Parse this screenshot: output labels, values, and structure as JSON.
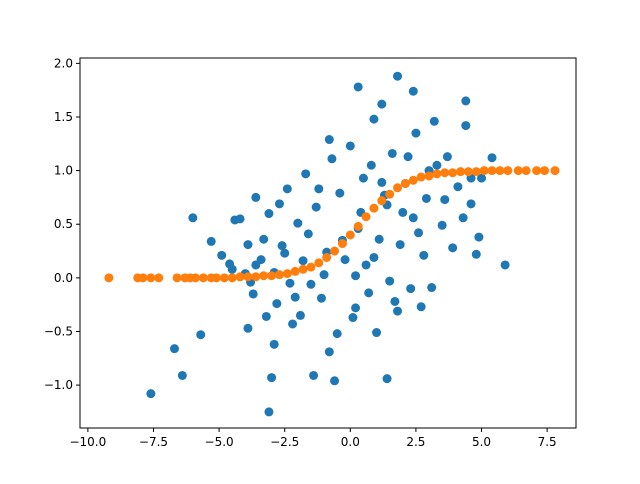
{
  "chart_data": {
    "type": "scatter",
    "title": "",
    "xlabel": "",
    "ylabel": "",
    "xlim": [
      -10.3,
      8.6
    ],
    "ylim": [
      -1.4,
      2.05
    ],
    "x_ticks": [
      -10.0,
      -7.5,
      -5.0,
      -2.5,
      0.0,
      2.5,
      5.0,
      7.5
    ],
    "x_tick_labels": [
      "−10.0",
      "−7.5",
      "−5.0",
      "−2.5",
      "0.0",
      "2.5",
      "5.0",
      "7.5"
    ],
    "y_ticks": [
      -1.0,
      -0.5,
      0.0,
      0.5,
      1.0,
      1.5,
      2.0
    ],
    "y_tick_labels": [
      "−1.0",
      "−0.5",
      "0.0",
      "0.5",
      "1.0",
      "1.5",
      "2.0"
    ],
    "grid": false,
    "legend": "none",
    "series": [
      {
        "color": "#1f77b4",
        "points": [
          [
            -7.6,
            -1.08
          ],
          [
            -6.4,
            -0.91
          ],
          [
            -6.7,
            -0.66
          ],
          [
            -5.7,
            -0.53
          ],
          [
            -3.1,
            -1.25
          ],
          [
            -3.0,
            -0.93
          ],
          [
            -0.6,
            -0.96
          ],
          [
            -1.4,
            -0.91
          ],
          [
            1.4,
            -0.94
          ],
          [
            -6.0,
            0.56
          ],
          [
            -5.3,
            0.34
          ],
          [
            -4.9,
            0.21
          ],
          [
            -4.6,
            0.13
          ],
          [
            -4.4,
            0.54
          ],
          [
            -4.2,
            0.55
          ],
          [
            -4.0,
            0.04
          ],
          [
            -3.9,
            -0.47
          ],
          [
            -3.7,
            -0.15
          ],
          [
            -3.6,
            0.12
          ],
          [
            -3.4,
            0.17
          ],
          [
            -3.3,
            0.36
          ],
          [
            -3.1,
            0.6
          ],
          [
            -2.9,
            -0.62
          ],
          [
            -2.8,
            -0.24
          ],
          [
            -2.6,
            0.3
          ],
          [
            -2.4,
            0.83
          ],
          [
            -2.2,
            -0.43
          ],
          [
            -2.0,
            0.51
          ],
          [
            -1.9,
            -0.35
          ],
          [
            -1.7,
            0.97
          ],
          [
            -1.5,
            -0.06
          ],
          [
            -1.3,
            0.66
          ],
          [
            -1.1,
            -0.19
          ],
          [
            -0.9,
            0.24
          ],
          [
            -0.7,
            1.11
          ],
          [
            -0.5,
            -0.52
          ],
          [
            -0.4,
            0.79
          ],
          [
            -0.2,
            0.17
          ],
          [
            0.0,
            1.23
          ],
          [
            0.2,
            -0.28
          ],
          [
            0.3,
            0.46
          ],
          [
            0.5,
            0.93
          ],
          [
            0.7,
            -0.14
          ],
          [
            0.8,
            1.05
          ],
          [
            1.0,
            -0.51
          ],
          [
            1.1,
            0.36
          ],
          [
            1.3,
            0.77
          ],
          [
            1.5,
            -0.03
          ],
          [
            1.6,
            1.16
          ],
          [
            1.8,
            -0.31
          ],
          [
            2.0,
            0.61
          ],
          [
            2.1,
            0.88
          ],
          [
            2.3,
            -0.1
          ],
          [
            2.5,
            1.35
          ],
          [
            2.6,
            0.42
          ],
          [
            2.8,
            0.21
          ],
          [
            2.9,
            0.74
          ],
          [
            3.1,
            -0.09
          ],
          [
            3.3,
            1.05
          ],
          [
            3.5,
            0.49
          ],
          [
            3.7,
            1.13
          ],
          [
            3.9,
            0.28
          ],
          [
            4.1,
            0.85
          ],
          [
            4.3,
            0.56
          ],
          [
            4.4,
            1.42
          ],
          [
            4.6,
            0.69
          ],
          [
            4.8,
            0.22
          ],
          [
            5.0,
            0.93
          ],
          [
            -3.8,
            -0.04
          ],
          [
            -2.1,
            -0.18
          ],
          [
            -1.0,
            0.03
          ],
          [
            0.6,
            0.12
          ],
          [
            1.9,
            0.31
          ],
          [
            -4.5,
            0.08
          ],
          [
            -3.2,
            -0.36
          ],
          [
            -2.7,
            0.69
          ],
          [
            -1.6,
            0.41
          ],
          [
            -0.8,
            -0.69
          ],
          [
            0.1,
            -0.37
          ],
          [
            0.9,
            0.19
          ],
          [
            1.7,
            -0.22
          ],
          [
            2.4,
            0.56
          ],
          [
            3.0,
            1.0
          ],
          [
            3.6,
            0.73
          ],
          [
            -0.3,
            0.35
          ],
          [
            0.4,
            0.61
          ],
          [
            -1.8,
            0.16
          ],
          [
            -2.3,
            -0.05
          ],
          [
            1.2,
            0.89
          ],
          [
            2.7,
            -0.27
          ],
          [
            1.8,
            1.88
          ],
          [
            0.3,
            1.78
          ],
          [
            2.4,
            1.74
          ],
          [
            1.2,
            1.62
          ],
          [
            0.9,
            1.48
          ],
          [
            -0.8,
            1.29
          ],
          [
            4.4,
            1.65
          ],
          [
            3.2,
            1.46
          ],
          [
            5.4,
            1.12
          ],
          [
            5.9,
            0.12
          ],
          [
            4.6,
            0.93
          ],
          [
            4.9,
            0.38
          ],
          [
            -3.9,
            0.31
          ],
          [
            -3.6,
            0.75
          ],
          [
            -2.5,
            0.23
          ],
          [
            -1.2,
            0.83
          ],
          [
            0.2,
            0.02
          ],
          [
            1.4,
            0.68
          ],
          [
            2.2,
            1.13
          ],
          [
            -2.9,
            0.05
          ]
        ]
      },
      {
        "color": "#ff7f0e",
        "points": [
          [
            -9.2,
            0.0
          ],
          [
            -8.1,
            0.0
          ],
          [
            -7.9,
            0.0
          ],
          [
            -7.6,
            0.0
          ],
          [
            -7.3,
            0.0
          ],
          [
            -6.6,
            0.0
          ],
          [
            -6.3,
            0.0
          ],
          [
            -6.1,
            0.0
          ],
          [
            -5.9,
            0.0
          ],
          [
            -5.6,
            0.0
          ],
          [
            -5.3,
            0.0
          ],
          [
            -5.1,
            0.0
          ],
          [
            -4.8,
            0.0
          ],
          [
            -4.5,
            0.0
          ],
          [
            -4.2,
            0.01
          ],
          [
            -3.9,
            0.01
          ],
          [
            -3.6,
            0.01
          ],
          [
            -3.3,
            0.02
          ],
          [
            -3.0,
            0.02
          ],
          [
            -2.7,
            0.03
          ],
          [
            -2.4,
            0.04
          ],
          [
            -2.1,
            0.06
          ],
          [
            -1.8,
            0.08
          ],
          [
            -1.5,
            0.1
          ],
          [
            -1.2,
            0.14
          ],
          [
            -0.9,
            0.19
          ],
          [
            -0.6,
            0.25
          ],
          [
            -0.3,
            0.32
          ],
          [
            0.0,
            0.4
          ],
          [
            0.3,
            0.48
          ],
          [
            0.6,
            0.57
          ],
          [
            0.9,
            0.65
          ],
          [
            1.2,
            0.72
          ],
          [
            1.5,
            0.78
          ],
          [
            1.8,
            0.84
          ],
          [
            2.1,
            0.88
          ],
          [
            2.4,
            0.91
          ],
          [
            2.7,
            0.94
          ],
          [
            3.0,
            0.95
          ],
          [
            3.3,
            0.97
          ],
          [
            3.6,
            0.98
          ],
          [
            3.9,
            0.98
          ],
          [
            4.2,
            0.99
          ],
          [
            4.5,
            0.99
          ],
          [
            4.8,
            0.99
          ],
          [
            5.1,
            1.0
          ],
          [
            5.4,
            1.0
          ],
          [
            5.7,
            1.0
          ],
          [
            6.0,
            1.0
          ],
          [
            6.4,
            1.0
          ],
          [
            6.7,
            1.0
          ],
          [
            7.1,
            1.0
          ],
          [
            7.4,
            1.0
          ],
          [
            7.8,
            1.0
          ]
        ]
      }
    ]
  }
}
